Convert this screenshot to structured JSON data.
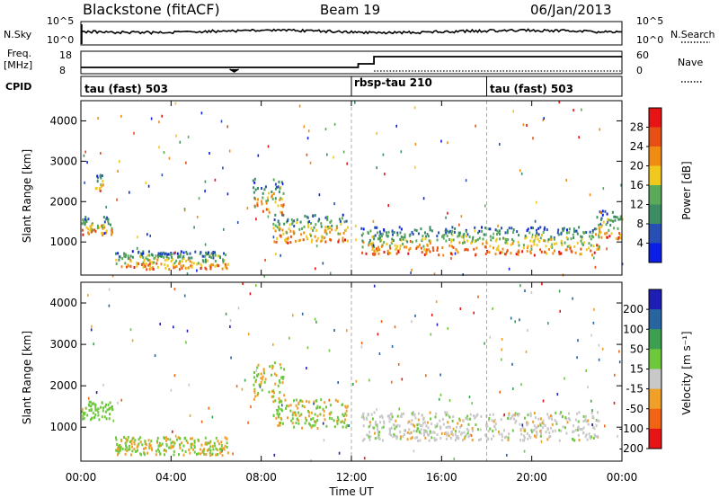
{
  "header": {
    "title": "Blackstone (fitACF)",
    "beam": "Beam 19",
    "date": "06/Jan/2013"
  },
  "status_panels": {
    "nsky_label": "N.Sky",
    "nsky_ticks": [
      "10^5",
      "10^0"
    ],
    "nsearch_label": "N.Search",
    "nsearch_ticks": [
      "10^5",
      "10^0"
    ],
    "freq_label": "Freq.",
    "freq_unit": "[MHz]",
    "freq_ticks": [
      "18",
      "8"
    ],
    "nave_label": "Nave",
    "nave_ticks": [
      "60",
      "0"
    ],
    "cpid_label": "CPID",
    "cpid_segments": [
      {
        "label": "tau (fast) 503",
        "start_hour": 0
      },
      {
        "label": "rbsp-tau 210",
        "start_hour": 12
      },
      {
        "label": "tau (fast) 503",
        "start_hour": 18
      }
    ],
    "nave_step_hour": 13
  },
  "chart_data": [
    {
      "type": "heatmap",
      "name": "power",
      "xlabel": "",
      "ylabel": "Slant Range [km]",
      "xlim": [
        0,
        24
      ],
      "ylim": [
        180,
        4500
      ],
      "ytick_labels": [
        "1000",
        "2000",
        "3000",
        "4000"
      ],
      "colorbar": {
        "label": "Power [dB]",
        "ticks": [
          "4",
          "8",
          "12",
          "16",
          "20",
          "24",
          "28"
        ],
        "colors": [
          "#0a1ee6",
          "#2850b4",
          "#3c8c64",
          "#5aaa5a",
          "#f0c81e",
          "#f08c14",
          "#e65014",
          "#e61414"
        ]
      },
      "echo_regions": [
        {
          "hour_start": 0.0,
          "hour_end": 1.4,
          "range_min": 1200,
          "range_max": 1650
        },
        {
          "hour_start": 0.6,
          "hour_end": 1.0,
          "range_min": 2300,
          "range_max": 2700
        },
        {
          "hour_start": 1.5,
          "hour_end": 6.5,
          "range_min": 350,
          "range_max": 800
        },
        {
          "hour_start": 7.6,
          "hour_end": 9.0,
          "range_min": 1700,
          "range_max": 2600
        },
        {
          "hour_start": 8.5,
          "hour_end": 11.8,
          "range_min": 1000,
          "range_max": 1700
        },
        {
          "hour_start": 12.4,
          "hour_end": 23.0,
          "range_min": 700,
          "range_max": 1400
        },
        {
          "hour_start": 22.8,
          "hour_end": 24.0,
          "range_min": 1100,
          "range_max": 1800
        }
      ]
    },
    {
      "type": "heatmap",
      "name": "velocity",
      "xlabel": "Time UT",
      "ylabel": "Slant Range [km]",
      "xlim": [
        0,
        24
      ],
      "ylim": [
        180,
        4500
      ],
      "xtick_labels": [
        "00:00",
        "04:00",
        "08:00",
        "12:00",
        "16:00",
        "20:00",
        "00:00"
      ],
      "ytick_labels": [
        "1000",
        "2000",
        "3000",
        "4000"
      ],
      "colorbar": {
        "label": "Velocity [m s⁻¹]",
        "ticks": [
          "200",
          "100",
          "50",
          "15",
          "-15",
          "-50",
          "-100",
          "-200"
        ],
        "colors": [
          "#1e1eb4",
          "#2864a0",
          "#3ca050",
          "#6ec83c",
          "#c8c8c8",
          "#f0a028",
          "#f06414",
          "#e61414"
        ]
      },
      "echo_regions": [
        {
          "hour_start": 0.0,
          "hour_end": 1.4,
          "range_min": 1200,
          "range_max": 1650
        },
        {
          "hour_start": 1.5,
          "hour_end": 6.5,
          "range_min": 350,
          "range_max": 800
        },
        {
          "hour_start": 7.6,
          "hour_end": 9.0,
          "range_min": 1700,
          "range_max": 2600
        },
        {
          "hour_start": 8.5,
          "hour_end": 11.8,
          "range_min": 1000,
          "range_max": 1700
        },
        {
          "hour_start": 12.4,
          "hour_end": 23.0,
          "range_min": 700,
          "range_max": 1400
        }
      ]
    }
  ]
}
